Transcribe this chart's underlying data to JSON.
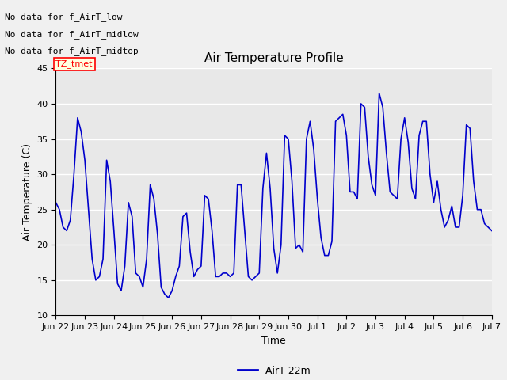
{
  "title": "Air Temperature Profile",
  "ylabel": "Air Temperature (C)",
  "xlabel": "Time",
  "legend_label": "AirT 22m",
  "no_data_texts": [
    "No data for f_AirT_low",
    "No data for f_AirT_midlow",
    "No data for f_AirT_midtop"
  ],
  "tz_label": "TZ_tmet",
  "ylim": [
    10,
    45
  ],
  "yticks": [
    10,
    15,
    20,
    25,
    30,
    35,
    40,
    45
  ],
  "line_color": "#0000cc",
  "bg_color": "#e8e8e8",
  "grid_color": "#ffffff",
  "fig_bg_color": "#f0f0f0",
  "x_tick_labels": [
    "Jun 22",
    "Jun 23",
    "Jun 24",
    "Jun 25",
    "Jun 26",
    "Jun 27",
    "Jun 28",
    "Jun 29",
    "Jun 30",
    "Jul 1",
    "Jul 2",
    "Jul 3",
    "Jul 4",
    "Jul 5",
    "Jul 6",
    "Jul 7"
  ],
  "y_values": [
    26.0,
    25.0,
    22.5,
    22.0,
    23.5,
    30.0,
    38.0,
    36.0,
    32.0,
    25.0,
    18.0,
    15.0,
    15.5,
    18.0,
    32.0,
    29.0,
    22.0,
    14.5,
    13.5,
    17.0,
    26.0,
    24.0,
    16.0,
    15.5,
    14.0,
    18.0,
    28.5,
    26.5,
    21.5,
    14.0,
    13.0,
    12.5,
    13.5,
    15.5,
    17.0,
    24.0,
    24.5,
    19.0,
    15.5,
    16.5,
    17.0,
    27.0,
    26.5,
    22.0,
    15.5,
    15.5,
    16.0,
    16.0,
    15.5,
    16.0,
    28.5,
    28.5,
    22.0,
    15.5,
    15.0,
    15.5,
    16.0,
    28.0,
    33.0,
    28.0,
    19.5,
    16.0,
    20.0,
    35.5,
    35.0,
    29.0,
    19.5,
    20.0,
    19.0,
    35.0,
    37.5,
    33.5,
    26.5,
    21.0,
    18.5,
    18.5,
    20.5,
    37.5,
    38.0,
    38.5,
    35.5,
    27.5,
    27.5,
    26.5,
    40.0,
    39.5,
    32.5,
    28.5,
    27.0,
    41.5,
    39.5,
    33.0,
    27.5,
    27.0,
    26.5,
    35.0,
    38.0,
    34.5,
    28.0,
    26.5,
    35.5,
    37.5,
    37.5,
    30.0,
    26.0,
    29.0,
    25.0,
    22.5,
    23.5,
    25.5,
    22.5,
    22.5,
    27.0,
    37.0,
    36.5,
    29.0,
    25.0,
    25.0,
    23.0,
    22.5,
    22.0
  ]
}
